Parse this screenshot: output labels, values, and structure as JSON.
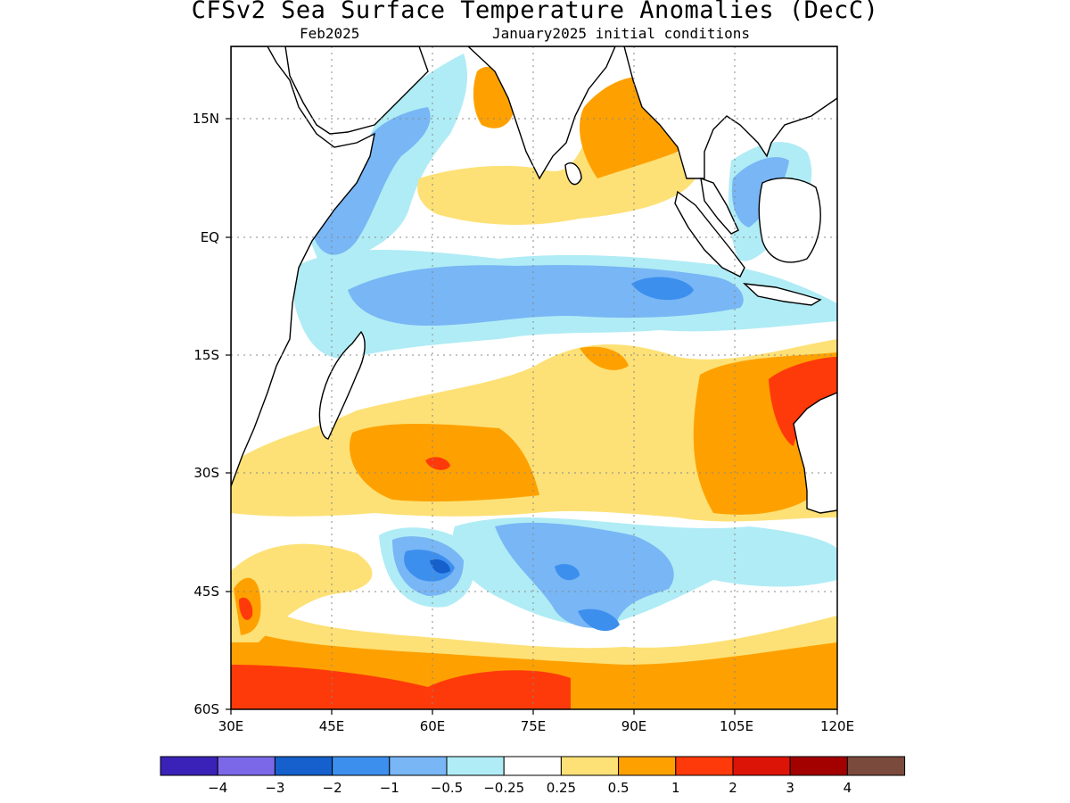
{
  "title": "CFSv2 Sea Surface Temperature Anomalies (DecC)",
  "subtitle_left": "Feb2025",
  "subtitle_right": "January2025 initial conditions",
  "map": {
    "region": "Indian Ocean",
    "lon_range": [
      30,
      120
    ],
    "lat_range": [
      -60,
      22
    ],
    "lon_ticks": [
      "30E",
      "45E",
      "60E",
      "75E",
      "90E",
      "105E",
      "120E"
    ],
    "lat_ticks": [
      "15N",
      "EQ",
      "15S",
      "30S",
      "45S",
      "60S"
    ],
    "grid": "dotted",
    "land_color": "#ffffff",
    "coastline_color": "#000000"
  },
  "colorbar": {
    "colors": [
      "#3a22b8",
      "#7b68e8",
      "#1560cc",
      "#3d8fee",
      "#78b6f5",
      "#b0ecf5",
      "#ffffff",
      "#fde176",
      "#fea100",
      "#ff3a0a",
      "#dc1408",
      "#a30000",
      "#7a4a3c"
    ],
    "labels": [
      "−4",
      "−3",
      "−2",
      "−1",
      "−0.5",
      "−0.25",
      "0.25",
      "0.5",
      "1",
      "2",
      "3",
      "4"
    ]
  }
}
